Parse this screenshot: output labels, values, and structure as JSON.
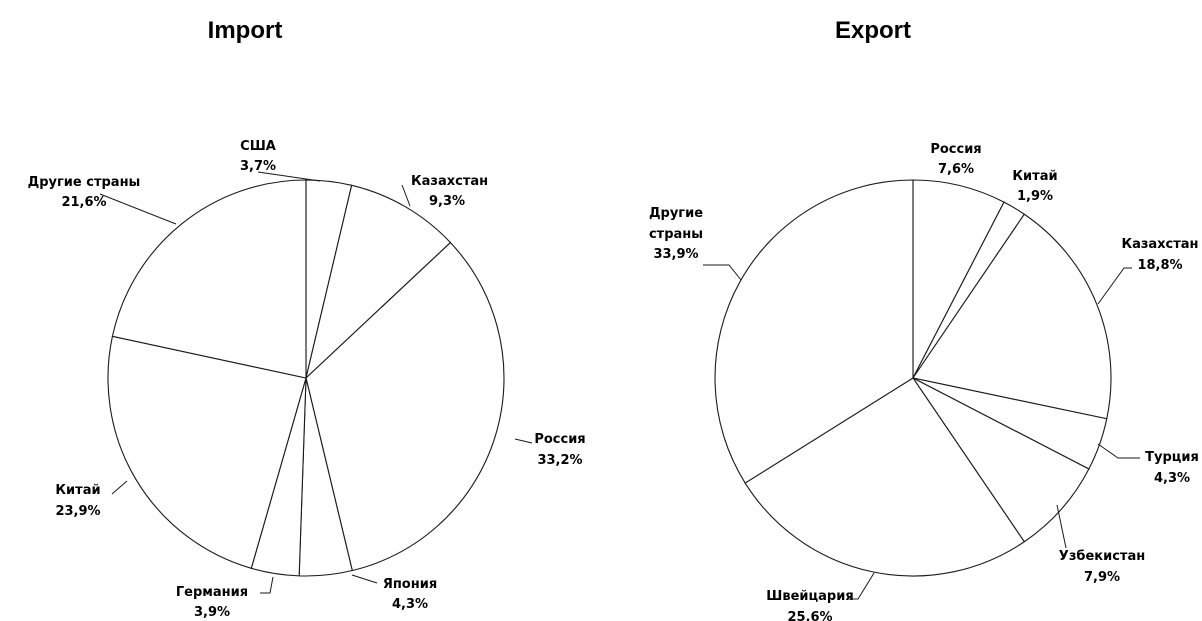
{
  "chart_data": [
    {
      "type": "pie",
      "title": "Import",
      "start_angle_deg": 0,
      "direction": "clockwise",
      "slices": [
        {
          "label": "США",
          "value": 3.7,
          "value_text": "3,7%"
        },
        {
          "label": "Казахстан",
          "value": 9.3,
          "value_text": "9,3%"
        },
        {
          "label": "Россия",
          "value": 33.2,
          "value_text": "33,2%"
        },
        {
          "label": "Япония",
          "value": 4.3,
          "value_text": "4,3%"
        },
        {
          "label": "Германия",
          "value": 3.9,
          "value_text": "3,9%"
        },
        {
          "label": "Китай",
          "value": 23.9,
          "value_text": "23,9%"
        },
        {
          "label": "Другие страны",
          "value": 21.6,
          "value_text": "21,6%"
        }
      ]
    },
    {
      "type": "pie",
      "title": "Export",
      "start_angle_deg": 0,
      "direction": "clockwise",
      "slices": [
        {
          "label": "Россия",
          "value": 7.6,
          "value_text": "7,6%"
        },
        {
          "label": "Китай",
          "value": 1.9,
          "value_text": "1,9%"
        },
        {
          "label": "Казахстан",
          "value": 18.8,
          "value_text": "18,8%"
        },
        {
          "label": "Турция",
          "value": 4.3,
          "value_text": "4,3%"
        },
        {
          "label": "Узбекистан",
          "value": 7.9,
          "value_text": "7,9%"
        },
        {
          "label": "Швейцария",
          "value": 25.6,
          "value_text": "25,6%"
        },
        {
          "label": "Другие страны",
          "value": 33.9,
          "value_text": "33,9%"
        }
      ]
    }
  ]
}
